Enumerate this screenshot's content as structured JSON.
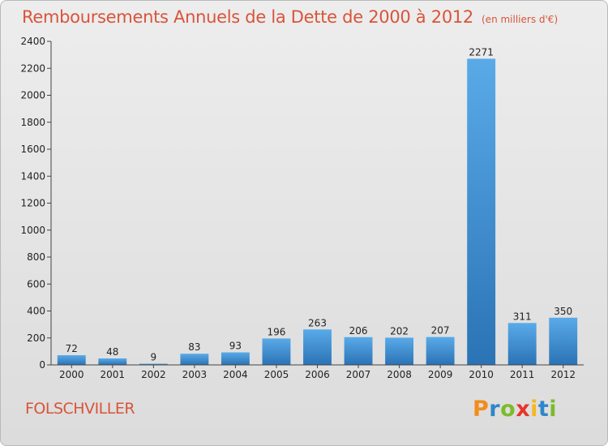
{
  "title": "Remboursements Annuels de la Dette de 2000 à 2012",
  "unit_note": "(en milliers d'€)",
  "commune": "FOLSCHVILLER",
  "brand": {
    "letters": [
      "P",
      "r",
      "o",
      "x",
      "i",
      "t",
      "i"
    ],
    "colors": [
      "#f28c1b",
      "#2f86c8",
      "#7cbb2b",
      "#e8342a",
      "#f5b820",
      "#2f86c8",
      "#7cbb2b"
    ]
  },
  "colors": {
    "title": "#d9543a",
    "bar_light": "#5aaae8",
    "bar_dark": "#2a73b5"
  },
  "chart_data": {
    "type": "bar",
    "categories": [
      "2000",
      "2001",
      "2002",
      "2003",
      "2004",
      "2005",
      "2006",
      "2007",
      "2008",
      "2009",
      "2010",
      "2011",
      "2012"
    ],
    "values": [
      72,
      48,
      9,
      83,
      93,
      196,
      263,
      206,
      202,
      207,
      2271,
      311,
      350
    ],
    "title": "Remboursements Annuels de la Dette de 2000 à 2012",
    "xlabel": "",
    "ylabel": "",
    "ylim": [
      0,
      2400
    ],
    "yticks": [
      0,
      200,
      400,
      600,
      800,
      1000,
      1200,
      1400,
      1600,
      1800,
      2000,
      2200,
      2400
    ],
    "grid": false,
    "legend": "none"
  }
}
